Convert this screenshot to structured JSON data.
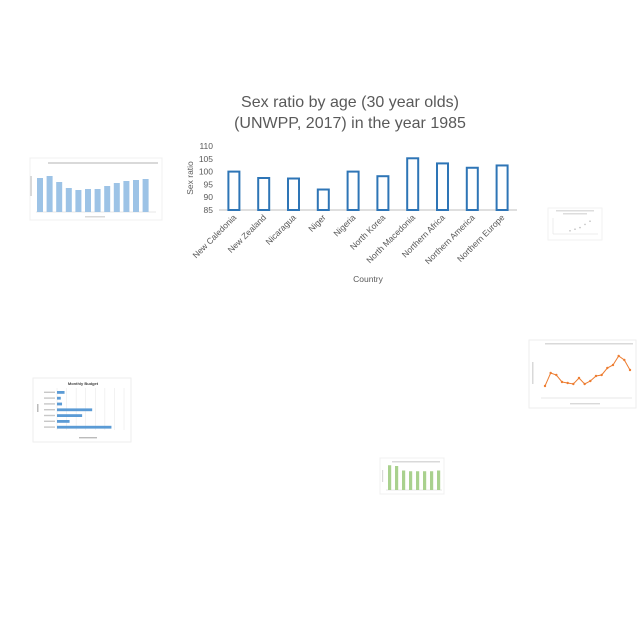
{
  "chart_data": [
    {
      "type": "bar",
      "title_line1": "Sex ratio by age (30 year olds)",
      "title_line2": "(UNWPP, 2017) in the year 1985",
      "xlabel": "Country",
      "ylabel": "Sex ratio",
      "ylim": [
        85,
        110
      ],
      "yticks": [
        "110",
        "105",
        "100",
        "95",
        "90",
        "85"
      ],
      "categories": [
        "New Caledonia",
        "New Zealand",
        "Nicaragua",
        "Niger",
        "Nigeria",
        "North Korea",
        "North Macedonia",
        "Northern Africa",
        "Northern America",
        "Northern Europe"
      ],
      "values": [
        100,
        97.5,
        97.3,
        93,
        100,
        98.2,
        105.2,
        103.2,
        101.5,
        102.4
      ],
      "bar_color": "#2e75b6",
      "grid": false,
      "legend": "none"
    },
    {
      "type": "bar",
      "values": [
        17,
        18,
        15,
        12,
        11,
        11.5,
        11.5,
        13,
        14.5,
        15.5,
        16,
        16.5
      ],
      "bar_color": "#9dc3e6"
    },
    {
      "type": "bar",
      "orientation": "horizontal",
      "title": "Monthly Budget",
      "values": [
        90,
        45,
        60,
        420,
        300,
        150,
        650
      ],
      "bar_color": "#5b9bd5"
    },
    {
      "type": "line",
      "values": [
        42,
        55,
        53,
        46,
        45,
        44,
        50,
        44,
        47,
        52,
        53,
        60,
        63,
        72,
        68,
        58
      ],
      "line_color": "#ed7d31"
    },
    {
      "type": "bar",
      "values": [
        33,
        32,
        26,
        25,
        25,
        25,
        25,
        26
      ],
      "bar_color": "#a9d18e"
    },
    {
      "type": "scatter",
      "values": [
        2,
        3,
        4,
        6,
        8
      ]
    }
  ]
}
